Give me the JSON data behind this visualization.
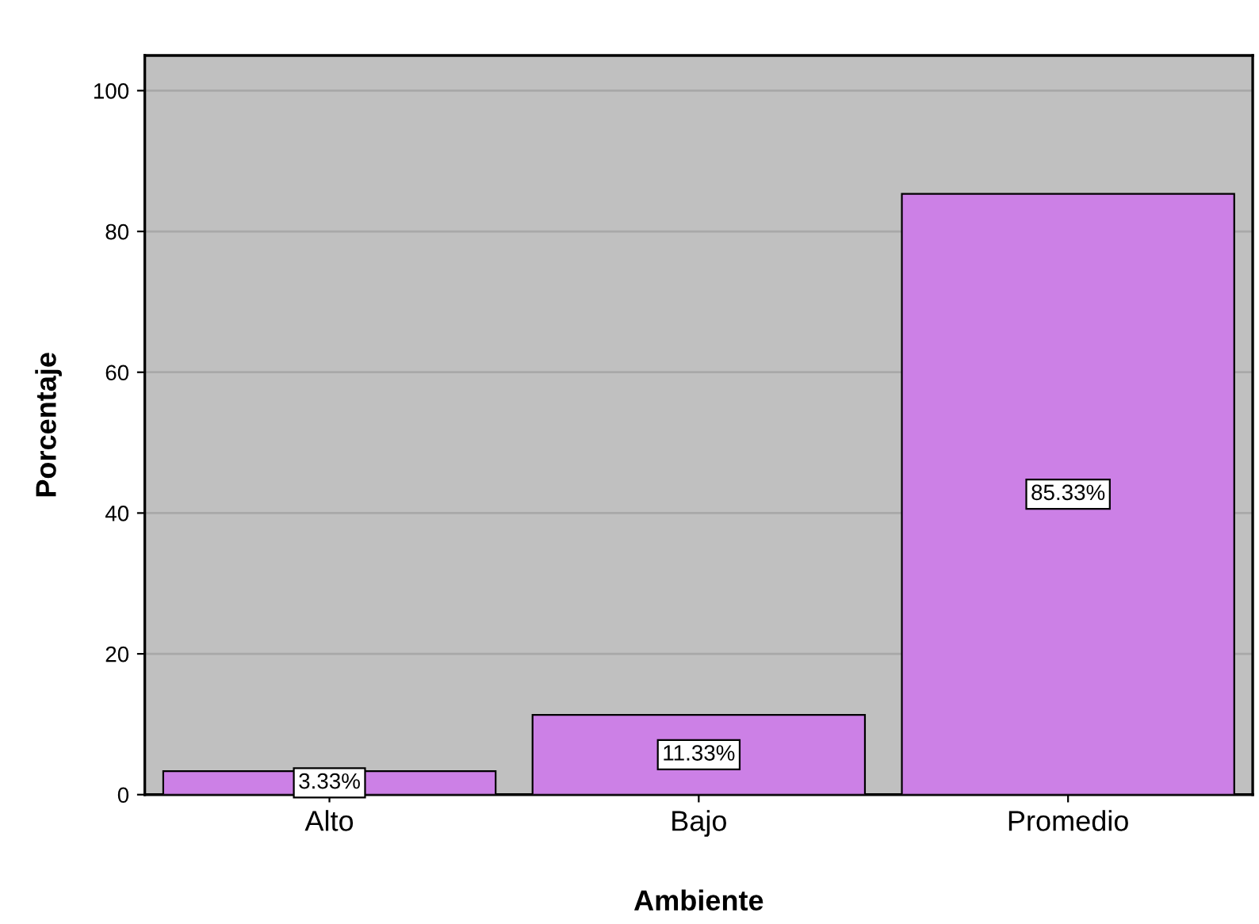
{
  "chart_data": {
    "type": "bar",
    "xlabel": "Ambiente",
    "ylabel": "Porcentaje",
    "categories": [
      "Alto",
      "Bajo",
      "Promedio"
    ],
    "values": [
      3.33,
      11.33,
      85.33
    ],
    "value_labels": [
      "3.33%",
      "11.33%",
      "85.33%"
    ],
    "color": "#cc80e6",
    "ylim": [
      0,
      105
    ],
    "yticks": [
      0,
      20,
      40,
      60,
      80,
      100
    ],
    "grid": "y"
  }
}
